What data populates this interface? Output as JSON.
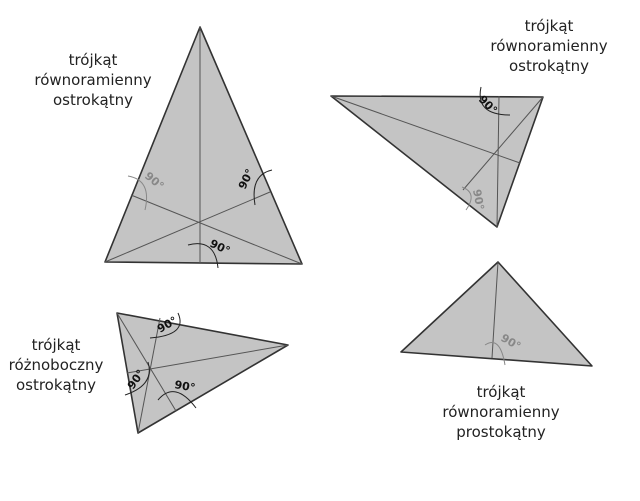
{
  "labels": [
    {
      "lines": [
        "trójkąt",
        "równoramienny",
        "ostrokątny"
      ]
    },
    {
      "lines": [
        "trójkąt",
        "równoramienny",
        "ostrokątny"
      ]
    },
    {
      "lines": [
        "trójkąt",
        "różnoboczny",
        "ostrokątny"
      ]
    },
    {
      "lines": [
        "trójkąt",
        "równoramienny",
        "prostokątny"
      ]
    }
  ],
  "angle_label": "90°",
  "colors": {
    "fill": "#c4c4c4",
    "stroke": "#333333",
    "angle_dark": "#111111",
    "angle_light": "#888888"
  }
}
